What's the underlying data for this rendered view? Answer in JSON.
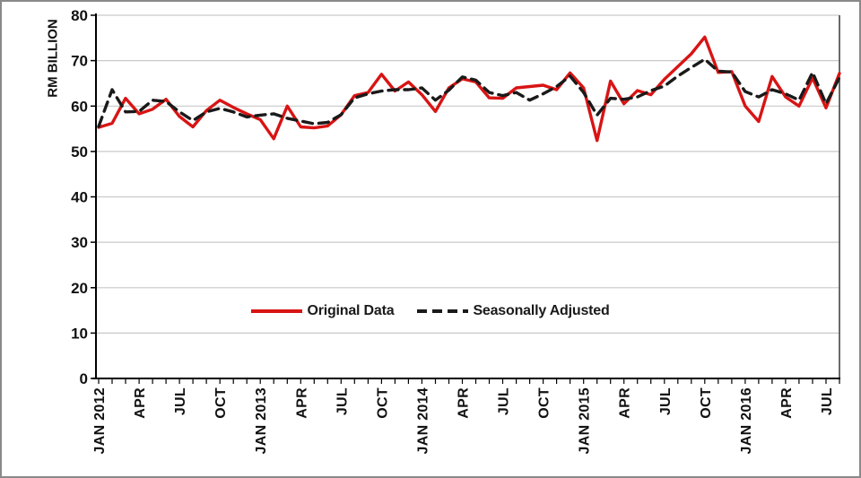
{
  "figure": {
    "background": "#ffffff",
    "border_color": "#8a8a8a",
    "grid_color": "#c9c9c9",
    "axis_color": "#000000",
    "text_color": "#111111"
  },
  "chart_data": {
    "type": "line",
    "title": "",
    "xlabel": "",
    "ylabel": "RM BILLION",
    "ylim": [
      0,
      80
    ],
    "y_ticks": [
      0,
      10,
      20,
      30,
      40,
      50,
      60,
      70,
      80
    ],
    "grid": true,
    "legend_position": "center-inside",
    "x_tick_interval": 3,
    "x_tick_labels": [
      "JAN 2012",
      "APR",
      "JUL",
      "OCT",
      "JAN 2013",
      "APR",
      "JUL",
      "OCT",
      "JAN 2014",
      "APR",
      "JUL",
      "OCT",
      "JAN 2015",
      "APR",
      "JUL",
      "OCT",
      "JAN 2016",
      "APR",
      "JUL"
    ],
    "x": [
      "JAN 2012",
      "FEB 2012",
      "MAR 2012",
      "APR 2012",
      "MAY 2012",
      "JUN 2012",
      "JUL 2012",
      "AUG 2012",
      "SEP 2012",
      "OCT 2012",
      "NOV 2012",
      "DEC 2012",
      "JAN 2013",
      "FEB 2013",
      "MAR 2013",
      "APR 2013",
      "MAY 2013",
      "JUN 2013",
      "JUL 2013",
      "AUG 2013",
      "SEP 2013",
      "OCT 2013",
      "NOV 2013",
      "DEC 2013",
      "JAN 2014",
      "FEB 2014",
      "MAR 2014",
      "APR 2014",
      "MAY 2014",
      "JUN 2014",
      "JUL 2014",
      "AUG 2014",
      "SEP 2014",
      "OCT 2014",
      "NOV 2014",
      "DEC 2014",
      "JAN 2015",
      "FEB 2015",
      "MAR 2015",
      "APR 2015",
      "MAY 2015",
      "JUN 2015",
      "JUL 2015",
      "AUG 2015",
      "SEP 2015",
      "OCT 2015",
      "NOV 2015",
      "DEC 2015",
      "JAN 2016",
      "FEB 2016",
      "MAR 2016",
      "APR 2016",
      "MAY 2016",
      "JUN 2016",
      "JUL 2016",
      "AUG 2016"
    ],
    "series": [
      {
        "name": "Original Data",
        "color": "#d81414",
        "style": "solid",
        "values": [
          55.3,
          56.2,
          61.7,
          58.3,
          59.3,
          61.5,
          57.7,
          55.4,
          59.0,
          61.3,
          59.7,
          58.3,
          57.0,
          52.8,
          60.0,
          55.4,
          55.2,
          55.6,
          58.1,
          62.3,
          63.0,
          67.0,
          63.3,
          65.3,
          62.5,
          58.8,
          64.0,
          66.0,
          65.3,
          61.8,
          61.7,
          64.0,
          64.3,
          64.6,
          63.6,
          67.3,
          64.0,
          52.4,
          65.5,
          60.5,
          63.4,
          62.5,
          65.9,
          68.7,
          71.5,
          75.2,
          67.4,
          67.6,
          60.0,
          56.6,
          66.5,
          62.0,
          60.0,
          66.2,
          59.6,
          67.2
        ]
      },
      {
        "name": "Seasonally Adjusted",
        "color": "#1a1a1a",
        "style": "dashed",
        "values": [
          55.5,
          63.6,
          58.7,
          58.8,
          61.3,
          61.0,
          58.7,
          56.8,
          58.7,
          59.5,
          58.7,
          57.6,
          58.0,
          58.3,
          57.3,
          56.7,
          56.1,
          56.4,
          58.1,
          61.8,
          62.7,
          63.3,
          63.6,
          63.6,
          64.0,
          61.3,
          63.5,
          66.4,
          65.7,
          63.0,
          62.3,
          63.0,
          61.3,
          62.7,
          64.3,
          66.6,
          63.0,
          58.0,
          61.7,
          61.5,
          62.0,
          63.4,
          64.4,
          66.6,
          68.5,
          70.3,
          67.7,
          67.5,
          63.2,
          62.0,
          63.6,
          62.7,
          61.3,
          67.4,
          60.5,
          66.3
        ]
      }
    ]
  },
  "legend": {
    "items": [
      {
        "label": "Original Data"
      },
      {
        "label": "Seasonally Adjusted"
      }
    ]
  }
}
